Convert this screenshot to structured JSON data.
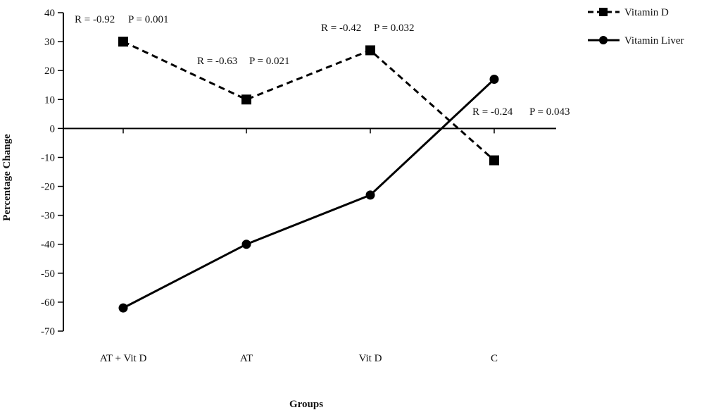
{
  "chart_data": {
    "type": "line",
    "categories": [
      "AT + Vit D",
      "AT",
      "Vit D",
      "C"
    ],
    "series": [
      {
        "name": "Vitamin D",
        "values": [
          30,
          10,
          27,
          -11
        ],
        "line_style": "dashed",
        "marker": "square"
      },
      {
        "name": "Vitamin Liver",
        "values": [
          -62,
          -40,
          -23,
          17
        ],
        "line_style": "solid",
        "marker": "circle"
      }
    ],
    "xlabel": "Groups",
    "ylabel": "Percentage Change",
    "ylim": [
      -70,
      40
    ],
    "yticks": [
      "40",
      "30",
      "20",
      "10",
      "0",
      "-10",
      "-20",
      "-30",
      "-40",
      "-50",
      "-60",
      "-70"
    ],
    "grid": false,
    "legend": "top-right",
    "annotations": [
      {
        "r": "R = -0.92",
        "p": "P = 0.001"
      },
      {
        "r": "R = -0.63",
        "p": "P = 0.021"
      },
      {
        "r": "R = -0.42",
        "p": "P = 0.032"
      },
      {
        "r": "R = -0.24",
        "p": "P = 0.043"
      }
    ],
    "colors": {
      "line": "#000000"
    }
  }
}
